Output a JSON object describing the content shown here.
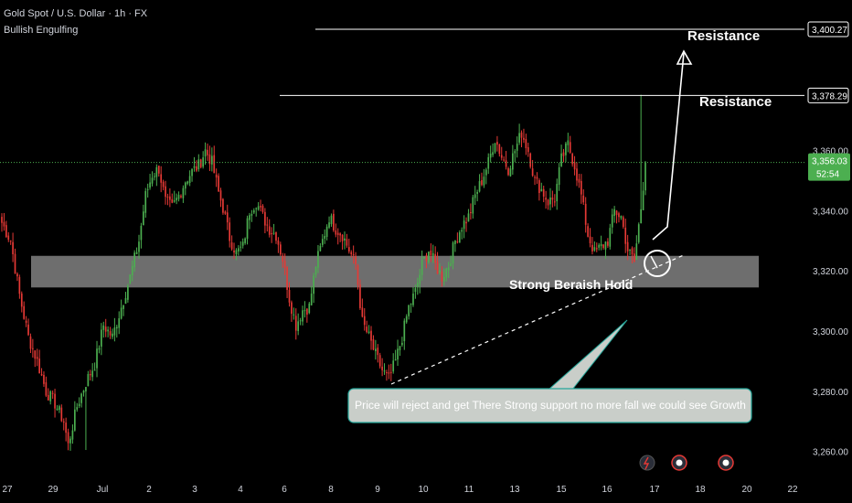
{
  "header": {
    "symbol_line": "Gold Spot / U.S. Dollar · 1h · FX",
    "indicator": "Bullish Engulfing"
  },
  "colors": {
    "background": "#000000",
    "bull": "#4caf50",
    "bear": "#e53935",
    "text": "#d1d4dc",
    "current_price_bg": "#4caf50",
    "support_zone": "#c8c8c8",
    "callout_fill": "#c9cec9",
    "callout_border": "#26a69a"
  },
  "chart_data": {
    "type": "candlestick",
    "x_tick_labels": [
      "27",
      "29",
      "Jul",
      "2",
      "3",
      "4",
      "6",
      "8",
      "9",
      "10",
      "11",
      "13",
      "15",
      "16",
      "17",
      "18",
      "20",
      "22"
    ],
    "y_tick_labels": [
      "3,260.00",
      "3,280.00",
      "3,300.00",
      "3,320.00",
      "3,340.00",
      "3,360.00"
    ],
    "y_ticks": [
      3260,
      3280,
      3300,
      3320,
      3340,
      3360
    ],
    "ylim": [
      3252,
      3410
    ],
    "current_price": "3,356.03",
    "countdown": "52:54",
    "series_points": [
      [
        0,
        3336
      ],
      [
        4,
        3330
      ],
      [
        8,
        3312
      ],
      [
        12,
        3298
      ],
      [
        16,
        3290
      ],
      [
        20,
        3280
      ],
      [
        24,
        3276
      ],
      [
        28,
        3270
      ],
      [
        30,
        3262
      ],
      [
        34,
        3275
      ],
      [
        38,
        3283
      ],
      [
        42,
        3289
      ],
      [
        46,
        3302
      ],
      [
        50,
        3298
      ],
      [
        54,
        3308
      ],
      [
        58,
        3318
      ],
      [
        62,
        3330
      ],
      [
        65,
        3345
      ],
      [
        68,
        3352
      ],
      [
        71,
        3354
      ],
      [
        74,
        3343
      ],
      [
        77,
        3341
      ],
      [
        80,
        3345
      ],
      [
        83,
        3350
      ],
      [
        86,
        3353
      ],
      [
        89,
        3355
      ],
      [
        92,
        3360
      ],
      [
        95,
        3356
      ],
      [
        98,
        3346
      ],
      [
        100,
        3341
      ],
      [
        103,
        3331
      ],
      [
        106,
        3326
      ],
      [
        109,
        3328
      ],
      [
        112,
        3340
      ],
      [
        115,
        3343
      ],
      [
        118,
        3338
      ],
      [
        121,
        3334
      ],
      [
        124,
        3332
      ],
      [
        127,
        3324
      ],
      [
        130,
        3311
      ],
      [
        133,
        3302
      ],
      [
        136,
        3307
      ],
      [
        139,
        3308
      ],
      [
        142,
        3322
      ],
      [
        145,
        3330
      ],
      [
        148,
        3338
      ],
      [
        151,
        3334
      ],
      [
        154,
        3332
      ],
      [
        157,
        3327
      ],
      [
        160,
        3322
      ],
      [
        163,
        3303
      ],
      [
        166,
        3298
      ],
      [
        169,
        3292
      ],
      [
        172,
        3287
      ],
      [
        175,
        3284
      ],
      [
        178,
        3290
      ],
      [
        181,
        3298
      ],
      [
        184,
        3308
      ],
      [
        187,
        3313
      ],
      [
        190,
        3322
      ],
      [
        193,
        3327
      ],
      [
        196,
        3322
      ],
      [
        199,
        3318
      ],
      [
        202,
        3322
      ],
      [
        205,
        3330
      ],
      [
        208,
        3335
      ],
      [
        211,
        3338
      ],
      [
        214,
        3345
      ],
      [
        217,
        3350
      ],
      [
        220,
        3356
      ],
      [
        223,
        3364
      ],
      [
        226,
        3358
      ],
      [
        229,
        3354
      ],
      [
        232,
        3360
      ],
      [
        235,
        3366
      ],
      [
        238,
        3360
      ],
      [
        241,
        3350
      ],
      [
        244,
        3347
      ],
      [
        247,
        3343
      ],
      [
        250,
        3344
      ],
      [
        253,
        3357
      ],
      [
        256,
        3362
      ],
      [
        259,
        3355
      ],
      [
        262,
        3345
      ],
      [
        265,
        3332
      ],
      [
        268,
        3326
      ],
      [
        271,
        3328
      ],
      [
        274,
        3330
      ],
      [
        277,
        3340
      ],
      [
        280,
        3338
      ],
      [
        283,
        3327
      ],
      [
        286,
        3323
      ],
      [
        289,
        3341
      ],
      [
        291,
        3356
      ]
    ],
    "annotations": {
      "resistance_top": {
        "label": "Resistance",
        "price": "3,400.27",
        "level": 3400.27
      },
      "resistance_mid": {
        "label": "Resistance",
        "price": "3,378.29",
        "level": 3378.29
      },
      "support_label": "Strong Beraish Hold",
      "callout": "Price will reject and get There Strong support no more fall we could see Growth"
    }
  }
}
